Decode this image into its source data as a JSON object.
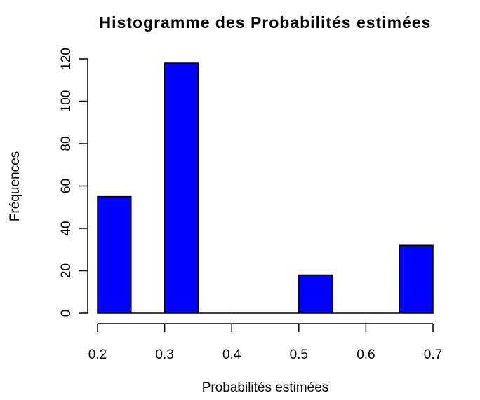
{
  "chart_data": {
    "type": "histogram",
    "title": "Histogramme des  Probabilités estimées",
    "xlabel": "Probabilités estimées",
    "ylabel": "Fréquences",
    "bins": [
      0.2,
      0.25,
      0.3,
      0.35,
      0.4,
      0.45,
      0.5,
      0.55,
      0.6,
      0.65,
      0.7
    ],
    "counts": [
      55,
      0,
      118,
      0,
      0,
      0,
      18,
      0,
      0,
      32
    ],
    "color": "#0000ff",
    "xlim": [
      0.2,
      0.7
    ],
    "xticks": [
      0.2,
      0.3,
      0.4,
      0.5,
      0.6,
      0.7
    ],
    "ylim": [
      0,
      120
    ],
    "yticks": [
      0,
      20,
      40,
      60,
      80,
      100,
      120
    ]
  }
}
